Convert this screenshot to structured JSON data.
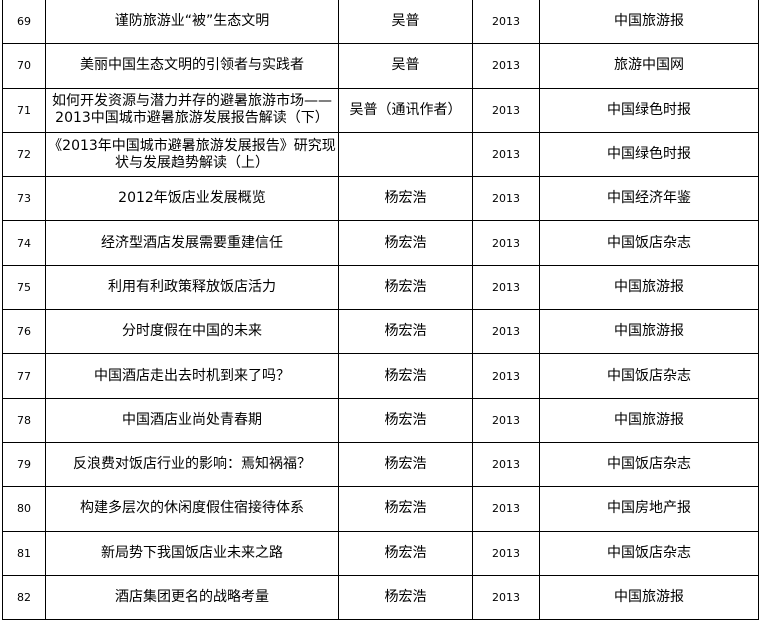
{
  "rows": [
    {
      "no": "69",
      "title": "谨防旅游业“被”生态文明",
      "author": "吴普",
      "year": "2013",
      "source": "中国旅游报"
    },
    {
      "no": "70",
      "title": "美丽中国生态文明的引领者与实践者",
      "author": "吴普",
      "year": "2013",
      "source": "旅游中国网"
    },
    {
      "no": "71",
      "title": "如何开发资源与潜力并存的避暑旅游市场——2013中国城市避暑旅游发展报告解读（下）",
      "author": "吴普（通讯作者）",
      "year": "2013",
      "source": "中国绿色时报"
    },
    {
      "no": "72",
      "title": "《2013年中国城市避暑旅游发展报告》研究现状与发展趋势解读（上）",
      "author": "",
      "year": "2013",
      "source": "中国绿色时报"
    },
    {
      "no": "73",
      "title": "2012年饭店业发展概览",
      "author": "杨宏浩",
      "year": "2013",
      "source": "中国经济年鉴"
    },
    {
      "no": "74",
      "title": "经济型酒店发展需要重建信任",
      "author": "杨宏浩",
      "year": "2013",
      "source": "中国饭店杂志"
    },
    {
      "no": "75",
      "title": "利用有利政策释放饭店活力",
      "author": "杨宏浩",
      "year": "2013",
      "source": "中国旅游报"
    },
    {
      "no": "76",
      "title": "分时度假在中国的未来",
      "author": "杨宏浩",
      "year": "2013",
      "source": "中国旅游报"
    },
    {
      "no": "77",
      "title": "中国酒店走出去时机到来了吗？",
      "author": "杨宏浩",
      "year": "2013",
      "source": "中国饭店杂志"
    },
    {
      "no": "78",
      "title": "中国酒店业尚处青春期",
      "author": "杨宏浩",
      "year": "2013",
      "source": "中国旅游报"
    },
    {
      "no": "79",
      "title": "反浪费对饭店行业的影响：焉知祸福？",
      "author": "杨宏浩",
      "year": "2013",
      "source": "中国饭店杂志"
    },
    {
      "no": "80",
      "title": "构建多层次的休闲度假住宿接待体系",
      "author": "杨宏浩",
      "year": "2013",
      "source": "中国房地产报"
    },
    {
      "no": "81",
      "title": "新局势下我国饭店业未来之路",
      "author": "杨宏浩",
      "year": "2013",
      "source": "中国饭店杂志"
    },
    {
      "no": "82",
      "title": "酒店集团更名的战略考量",
      "author": "杨宏浩",
      "year": "2013",
      "source": "中国旅游报"
    }
  ]
}
